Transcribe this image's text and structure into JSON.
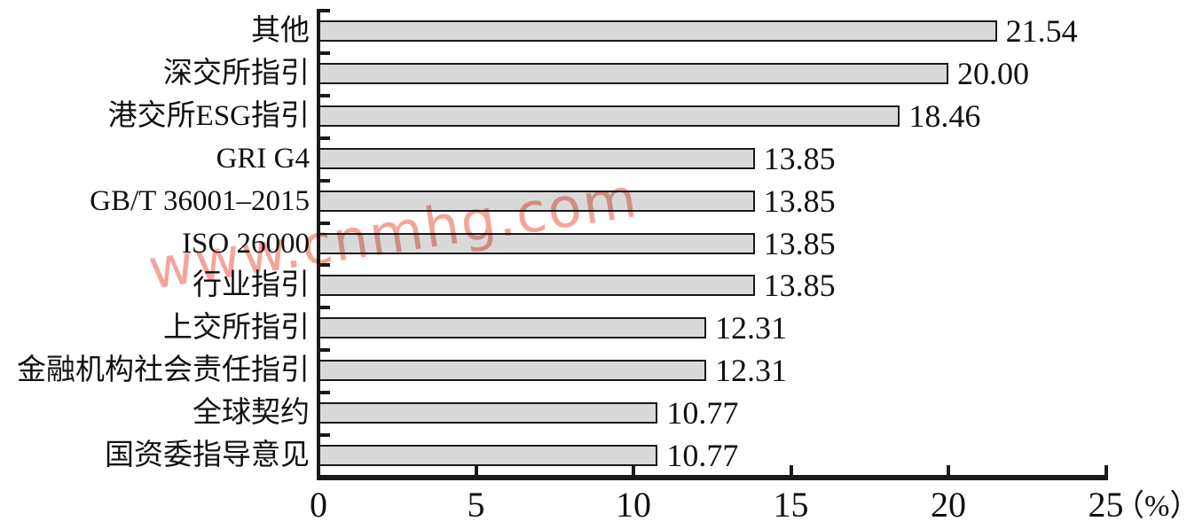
{
  "colors": {
    "bar_fill": "#d9d9d9",
    "bar_border": "#1a1a1a",
    "axis": "#1a1a1a",
    "text": "#111111",
    "watermark": "#f0968a"
  },
  "watermark": {
    "text": "www.cnmhg.com"
  },
  "chart_data": {
    "type": "bar",
    "orientation": "horizontal",
    "title": "",
    "xlabel": "",
    "ylabel": "",
    "xlabel_unit": "（%）",
    "categories": [
      "其他",
      "深交所指引",
      "港交所ESG指引",
      "GRI G4",
      "GB/T 36001–2015",
      "ISO 26000",
      "行业指引",
      "上交所指引",
      "金融机构社会责任指引",
      "全球契约",
      "国资委指导意见"
    ],
    "values": [
      21.54,
      20.0,
      18.46,
      13.85,
      13.85,
      13.85,
      13.85,
      12.31,
      12.31,
      10.77,
      10.77
    ],
    "value_labels": [
      "21.54",
      "20.00",
      "18.46",
      "13.85",
      "13.85",
      "13.85",
      "13.85",
      "12.31",
      "12.31",
      "10.77",
      "10.77"
    ],
    "x_ticks": [
      0,
      5,
      10,
      15,
      20,
      25
    ],
    "xlim": [
      0,
      25
    ],
    "grid": false,
    "legend": null
  }
}
